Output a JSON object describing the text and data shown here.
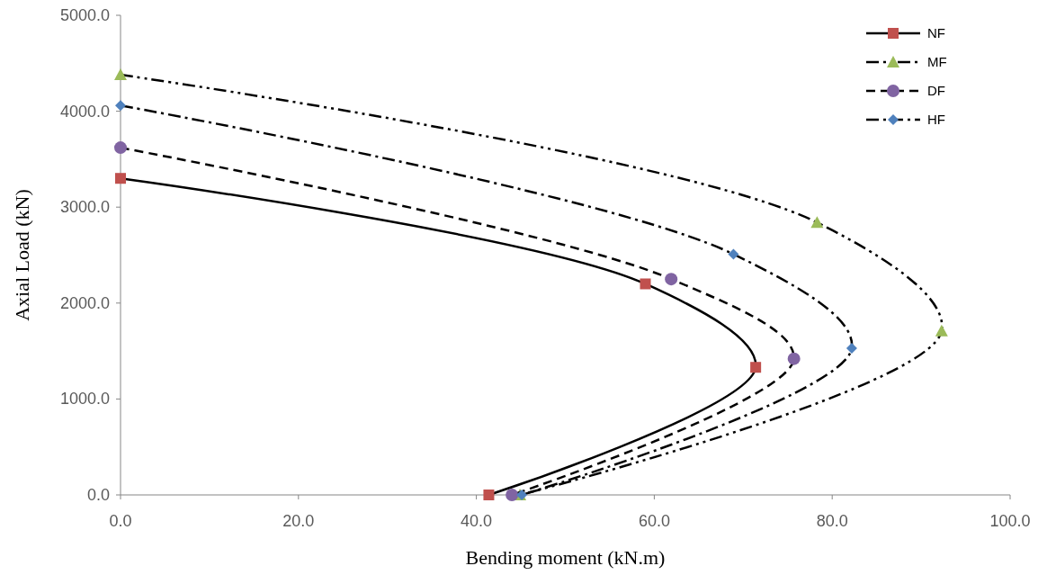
{
  "chart_data": {
    "type": "line",
    "xlabel": "Bending moment (kN.m)",
    "ylabel": "Axial Load (kN)",
    "xlim": [
      0,
      100
    ],
    "ylim": [
      0,
      5000
    ],
    "xticks": [
      {
        "value": 0,
        "label": "0.0"
      },
      {
        "value": 20,
        "label": "20.0"
      },
      {
        "value": 40,
        "label": "40.0"
      },
      {
        "value": 60,
        "label": "60.0"
      },
      {
        "value": 80,
        "label": "80.0"
      },
      {
        "value": 100,
        "label": "100.0"
      }
    ],
    "yticks": [
      {
        "value": 0,
        "label": "0.0"
      },
      {
        "value": 1000,
        "label": "1000.0"
      },
      {
        "value": 2000,
        "label": "2000.0"
      },
      {
        "value": 3000,
        "label": "3000.0"
      },
      {
        "value": 4000,
        "label": "4000.0"
      },
      {
        "value": 5000,
        "label": "5000.0"
      }
    ],
    "grid": false,
    "legend": "top right",
    "series": [
      {
        "name": "NF",
        "color": "#c0504d",
        "marker": "square",
        "line_style": "solid",
        "x": [
          0,
          59.0,
          71.4,
          41.4
        ],
        "values": [
          3300,
          2200,
          1330,
          0
        ]
      },
      {
        "name": "MF",
        "color": "#9bbb59",
        "marker": "triangle",
        "line_style": "dashdotdot",
        "x": [
          0,
          78.3,
          92.3,
          44.9
        ],
        "values": [
          4380,
          2840,
          1710,
          0
        ]
      },
      {
        "name": "DF",
        "color": "#8064a2",
        "marker": "circle",
        "line_style": "dashed",
        "x": [
          0,
          61.9,
          75.7,
          44.0
        ],
        "values": [
          3620,
          2250,
          1420,
          0
        ]
      },
      {
        "name": "HF",
        "color": "#4f81bd",
        "marker": "diamond",
        "line_style": "dashdot",
        "x": [
          0,
          68.9,
          82.2,
          45.1
        ],
        "values": [
          4060,
          2510,
          1530,
          0
        ]
      }
    ]
  }
}
